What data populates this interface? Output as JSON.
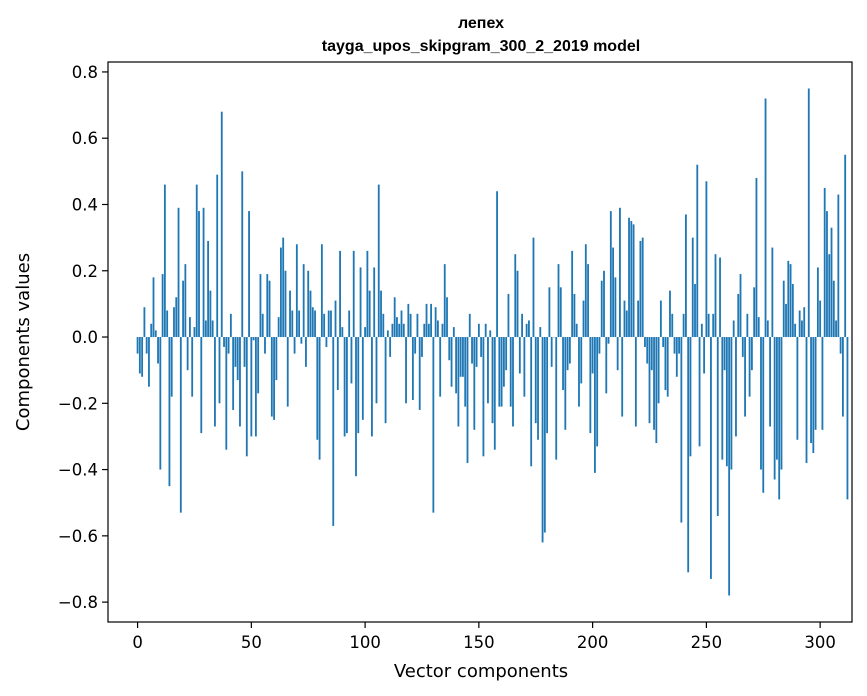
{
  "chart_data": {
    "type": "bar",
    "title": "лепех",
    "subtitle": "tayga_upos_skipgram_300_2_2019 model",
    "xlabel": "Vector components",
    "ylabel": "Components values",
    "xlim": [
      -13,
      314
    ],
    "ylim": [
      -0.86,
      0.83
    ],
    "xticks": [
      0,
      50,
      100,
      150,
      200,
      250,
      300
    ],
    "xtick_labels": [
      "0",
      "50",
      "100",
      "150",
      "200",
      "250",
      "300"
    ],
    "yticks": [
      -0.8,
      -0.6,
      -0.4,
      -0.2,
      0.0,
      0.2,
      0.4,
      0.6,
      0.8
    ],
    "ytick_labels": [
      "−0.8",
      "−0.6",
      "−0.4",
      "−0.2",
      "0.0",
      "0.2",
      "0.4",
      "0.6",
      "0.8"
    ],
    "bar_color": "#1f77b4",
    "values": [
      -0.05,
      -0.11,
      -0.12,
      0.09,
      -0.05,
      -0.15,
      0.04,
      0.18,
      0.02,
      -0.08,
      -0.4,
      0.19,
      0.46,
      0.08,
      -0.45,
      -0.18,
      0.09,
      0.12,
      0.39,
      -0.53,
      0.17,
      0.22,
      -0.1,
      0.06,
      -0.18,
      0.03,
      0.46,
      0.38,
      -0.29,
      0.39,
      0.05,
      0.29,
      0.14,
      0.05,
      -0.27,
      0.49,
      -0.2,
      0.68,
      -0.03,
      -0.34,
      -0.05,
      0.07,
      -0.22,
      -0.09,
      -0.13,
      -0.27,
      0.5,
      -0.09,
      -0.36,
      0.38,
      -0.3,
      -0.01,
      -0.3,
      -0.17,
      0.19,
      0.07,
      -0.05,
      0.19,
      0.17,
      -0.24,
      -0.25,
      -0.13,
      0.06,
      0.27,
      0.3,
      0.2,
      -0.21,
      0.14,
      0.08,
      -0.05,
      0.28,
      0.08,
      -0.02,
      0.22,
      -0.09,
      0.2,
      0.14,
      0.09,
      0.08,
      -0.31,
      -0.37,
      0.28,
      0.07,
      -0.03,
      0.08,
      0.08,
      -0.57,
      0.11,
      -0.16,
      0.26,
      0.03,
      -0.3,
      -0.29,
      0.08,
      -0.14,
      0.26,
      -0.42,
      -0.29,
      0.21,
      -0.25,
      0.03,
      0.26,
      0.14,
      -0.3,
      0.21,
      -0.2,
      0.46,
      0.14,
      0.07,
      -0.26,
      0.02,
      -0.06,
      0.04,
      0.12,
      0.06,
      0.04,
      0.08,
      0.04,
      -0.2,
      0.1,
      0.07,
      -0.19,
      -0.05,
      0.07,
      -0.22,
      -0.06,
      0.04,
      0.1,
      0.04,
      0.1,
      -0.53,
      0.09,
      0.05,
      -0.18,
      0.04,
      0.22,
      0.12,
      -0.07,
      -0.15,
      0.03,
      -0.17,
      -0.27,
      -0.12,
      -0.12,
      -0.21,
      -0.38,
      0.07,
      -0.08,
      -0.28,
      -0.09,
      0.04,
      -0.06,
      -0.36,
      0.04,
      -0.2,
      0.02,
      -0.26,
      -0.34,
      0.44,
      -0.21,
      -0.21,
      -0.15,
      -0.1,
      0.13,
      -0.21,
      -0.27,
      0.25,
      0.2,
      -0.11,
      0.07,
      -0.18,
      0.04,
      0.05,
      -0.39,
      0.3,
      -0.26,
      -0.31,
      0.03,
      -0.62,
      -0.59,
      -0.29,
      0.15,
      -0.09,
      0.0,
      -0.37,
      0.22,
      0.15,
      -0.16,
      -0.28,
      -0.1,
      -0.08,
      0.26,
      0.13,
      0.04,
      -0.21,
      -0.14,
      0.11,
      0.28,
      0.22,
      -0.29,
      -0.11,
      -0.41,
      -0.33,
      -0.05,
      0.17,
      0.2,
      -0.17,
      -0.02,
      0.38,
      0.27,
      0.18,
      -0.1,
      0.39,
      -0.24,
      0.11,
      0.08,
      0.36,
      0.35,
      0.34,
      -0.27,
      0.11,
      0.29,
      0.3,
      -0.03,
      -0.08,
      -0.26,
      -0.1,
      -0.28,
      -0.32,
      -0.2,
      0.11,
      -0.03,
      -0.16,
      -0.18,
      0.14,
      0.07,
      -0.05,
      -0.12,
      -0.05,
      -0.56,
      0.07,
      0.37,
      -0.71,
      -0.36,
      0.3,
      0.16,
      0.52,
      -0.33,
      0.04,
      -0.11,
      0.47,
      0.07,
      -0.73,
      0.07,
      0.25,
      -0.54,
      0.24,
      -0.37,
      -0.1,
      -0.39,
      -0.78,
      -0.4,
      0.05,
      -0.3,
      0.13,
      0.19,
      -0.06,
      -0.24,
      0.07,
      -0.18,
      -0.1,
      0.15,
      0.48,
      0.06,
      -0.4,
      -0.47,
      0.72,
      0.05,
      -0.27,
      0.27,
      -0.43,
      -0.37,
      -0.49,
      -0.4,
      0.17,
      0.1,
      0.23,
      0.22,
      0.16,
      0.04,
      -0.31,
      0.08,
      0.05,
      0.09,
      -0.38,
      0.75,
      -0.32,
      -0.35,
      -0.28,
      0.21,
      0.11,
      -0.28,
      0.45,
      0.38,
      0.25,
      0.33,
      0.17,
      0.05,
      0.43,
      -0.05,
      -0.24,
      0.55,
      -0.49
    ]
  }
}
